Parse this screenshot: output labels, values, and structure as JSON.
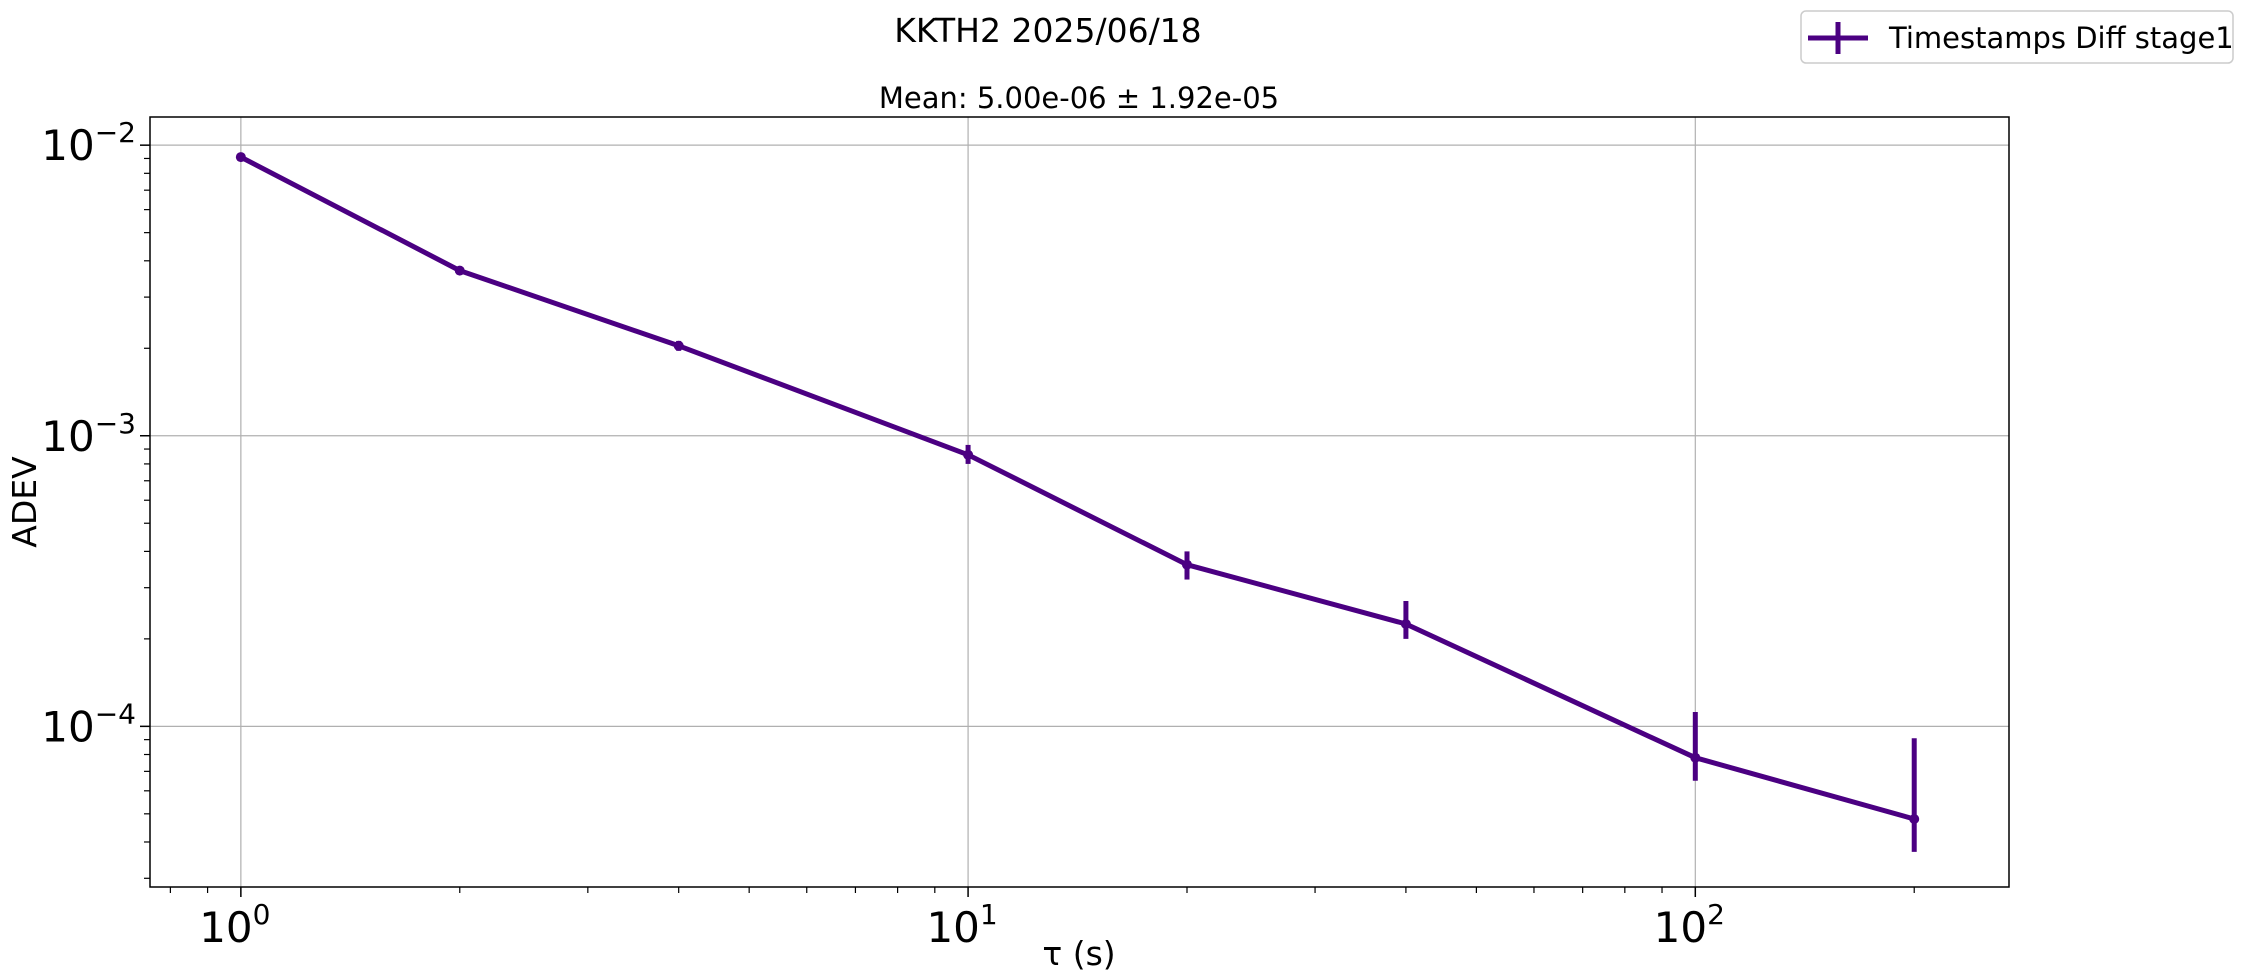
{
  "chart_data": {
    "type": "line",
    "title": "KKTH2 2025/06/18",
    "subtitle": "Mean: 5.00e-06 ± 1.92e-05",
    "xlabel": "τ (s)",
    "ylabel": "ADEV",
    "xscale": "log",
    "yscale": "log",
    "xlim": [
      0.75,
      270
    ],
    "ylim": [
      2.8e-05,
      0.0125
    ],
    "x_ticks": [
      {
        "value": 1,
        "base": "10",
        "exp": "0"
      },
      {
        "value": 10,
        "base": "10",
        "exp": "1"
      },
      {
        "value": 100,
        "base": "10",
        "exp": "2"
      }
    ],
    "y_ticks": [
      {
        "value": 0.0001,
        "base": "10",
        "exp": "−4"
      },
      {
        "value": 0.001,
        "base": "10",
        "exp": "−3"
      },
      {
        "value": 0.01,
        "base": "10",
        "exp": "−2"
      }
    ],
    "grid": true,
    "legend_position": "top-right",
    "series": [
      {
        "name": "Timestamps Diff stage1",
        "color": "#4b0082",
        "points": [
          {
            "x": 1,
            "y": 0.0091,
            "err_low": 0.0088,
            "err_high": 0.0094
          },
          {
            "x": 2,
            "y": 0.0037,
            "err_low": 0.00362,
            "err_high": 0.00379
          },
          {
            "x": 4,
            "y": 0.00204,
            "err_low": 0.00196,
            "err_high": 0.00212
          },
          {
            "x": 10,
            "y": 0.00086,
            "err_low": 0.0008,
            "err_high": 0.00093
          },
          {
            "x": 20,
            "y": 0.00036,
            "err_low": 0.00032,
            "err_high": 0.0004
          },
          {
            "x": 40,
            "y": 0.000225,
            "err_low": 0.0002,
            "err_high": 0.00027
          },
          {
            "x": 100,
            "y": 7.8e-05,
            "err_low": 6.5e-05,
            "err_high": 0.000112
          },
          {
            "x": 200,
            "y": 4.8e-05,
            "err_low": 3.7e-05,
            "err_high": 9.1e-05
          }
        ]
      }
    ]
  }
}
